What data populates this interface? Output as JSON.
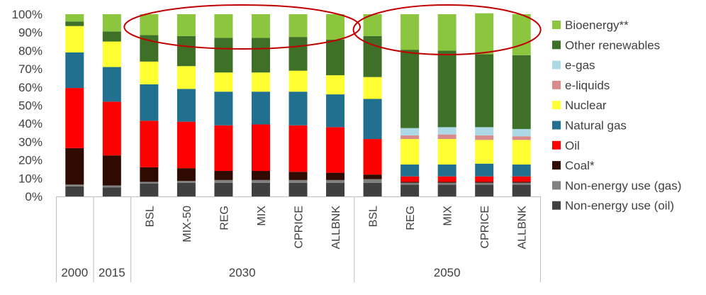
{
  "chart_data": {
    "type": "bar",
    "stacked": true,
    "ylim": [
      0,
      100
    ],
    "y_ticks": [
      "0%",
      "10%",
      "20%",
      "30%",
      "40%",
      "50%",
      "60%",
      "70%",
      "80%",
      "90%",
      "100%"
    ],
    "categories": [
      "",
      "",
      "BSL",
      "MIX-50",
      "REG",
      "MIX",
      "CPRICE",
      "ALLBNK",
      "BSL",
      "REG",
      "MIX",
      "CPRICE",
      "ALLBNK"
    ],
    "groups": [
      {
        "label": "2000",
        "count": 1
      },
      {
        "label": "2015",
        "count": 1
      },
      {
        "label": "2030",
        "count": 6
      },
      {
        "label": "2050",
        "count": 5
      }
    ],
    "series": [
      {
        "name": "Non-energy use (oil)",
        "color": "#404040",
        "values": [
          5.5,
          5,
          7,
          7.5,
          7.5,
          7.5,
          7.5,
          7.5,
          7.5,
          6.5,
          6.5,
          6.5,
          6.5
        ]
      },
      {
        "name": "Non-energy use (gas)",
        "color": "#808080",
        "values": [
          1,
          1,
          1,
          1,
          1.5,
          1.5,
          1.5,
          1.5,
          2,
          1,
          1,
          1,
          1
        ]
      },
      {
        "name": "Coal*",
        "color": "#2f0a00",
        "values": [
          20,
          16.5,
          8,
          7,
          5,
          5,
          4.5,
          4,
          2.5,
          0.5,
          0.5,
          0.5,
          0.5
        ]
      },
      {
        "name": "Oil",
        "color": "#ff0000",
        "values": [
          33,
          29.5,
          25.5,
          25.5,
          25,
          25.5,
          25.5,
          25,
          19.5,
          3,
          3,
          3,
          3
        ]
      },
      {
        "name": "Natural gas",
        "color": "#21708f",
        "values": [
          19.5,
          19,
          20,
          18,
          18.5,
          18,
          18.5,
          18,
          22,
          6.5,
          6.5,
          7,
          6.5
        ]
      },
      {
        "name": "Nuclear",
        "color": "#ffff32",
        "values": [
          14.5,
          14,
          12.5,
          12.5,
          10.5,
          10.5,
          11.5,
          10.5,
          12,
          14,
          14,
          13,
          13.5
        ]
      },
      {
        "name": "e-liquids",
        "color": "#d98b8b",
        "values": [
          0,
          0,
          0,
          0,
          0,
          0,
          0,
          0,
          0,
          2,
          2.5,
          2.5,
          2
        ]
      },
      {
        "name": "e-gas",
        "color": "#add8e6",
        "values": [
          0,
          0,
          0,
          0,
          0,
          0,
          0,
          0,
          0,
          4,
          4,
          4.5,
          4
        ]
      },
      {
        "name": "Other renewables",
        "color": "#3e7027",
        "values": [
          2.5,
          5.5,
          14.5,
          16.5,
          19,
          19,
          18.5,
          19.5,
          22.5,
          43,
          42,
          40,
          40.5
        ]
      },
      {
        "name": "Bioenergy**",
        "color": "#8cc63f",
        "values": [
          4,
          9.5,
          11.5,
          12,
          13,
          13,
          12.5,
          14,
          12,
          19.5,
          20,
          22.5,
          22.5
        ]
      }
    ],
    "legend_order": [
      "Bioenergy**",
      "Other renewables",
      "e-gas",
      "e-liquids",
      "Nuclear",
      "Natural gas",
      "Oil",
      "Coal*",
      "Non-energy use (gas)",
      "Non-energy use (oil)"
    ],
    "legend_position": "right",
    "highlight_ellipses": [
      {
        "covers": "2030 bars",
        "color": "#c00000"
      },
      {
        "covers": "2050 bars",
        "color": "#c00000"
      }
    ],
    "grid": false
  }
}
